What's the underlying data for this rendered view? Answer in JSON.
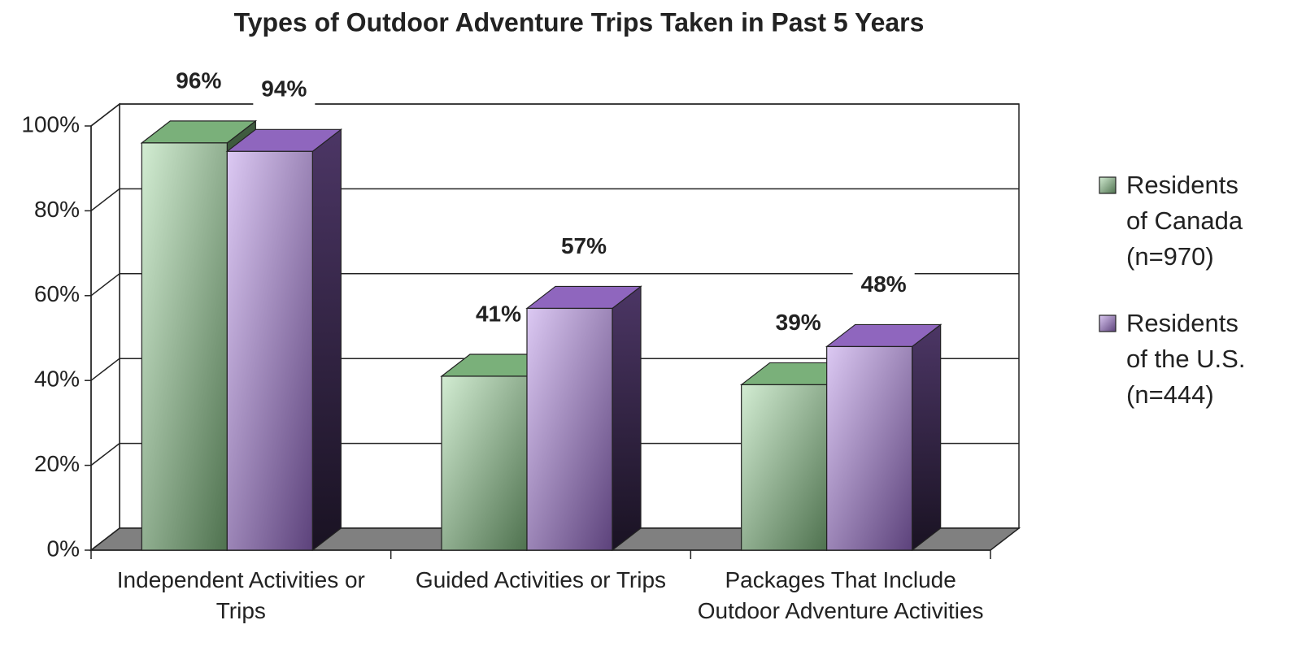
{
  "chart_data": {
    "type": "bar3d",
    "title": "Types of Outdoor Adventure Trips Taken in Past 5 Years",
    "categories": [
      "Independent Activities or Trips",
      "Guided Activities or Trips",
      "Packages That Include Outdoor Adventure Activities"
    ],
    "series": [
      {
        "name": "Residents of Canada (n=970)",
        "color": "#8fcf8f",
        "values": [
          96,
          41,
          39
        ],
        "value_labels": [
          "96%",
          "41%",
          "39%"
        ]
      },
      {
        "name": "Residents of the U.S. (n=444)",
        "color": "#a878e0",
        "values": [
          94,
          57,
          48
        ],
        "value_labels": [
          "94%",
          "57%",
          "48%"
        ]
      }
    ],
    "ylim": [
      0,
      100
    ],
    "yticks": [
      {
        "value": 0,
        "label": "0%"
      },
      {
        "value": 20,
        "label": "20%"
      },
      {
        "value": 40,
        "label": "40%"
      },
      {
        "value": 60,
        "label": "60%"
      },
      {
        "value": 80,
        "label": "80%"
      },
      {
        "value": 100,
        "label": "100%"
      }
    ],
    "grid": true,
    "legend": "right"
  }
}
